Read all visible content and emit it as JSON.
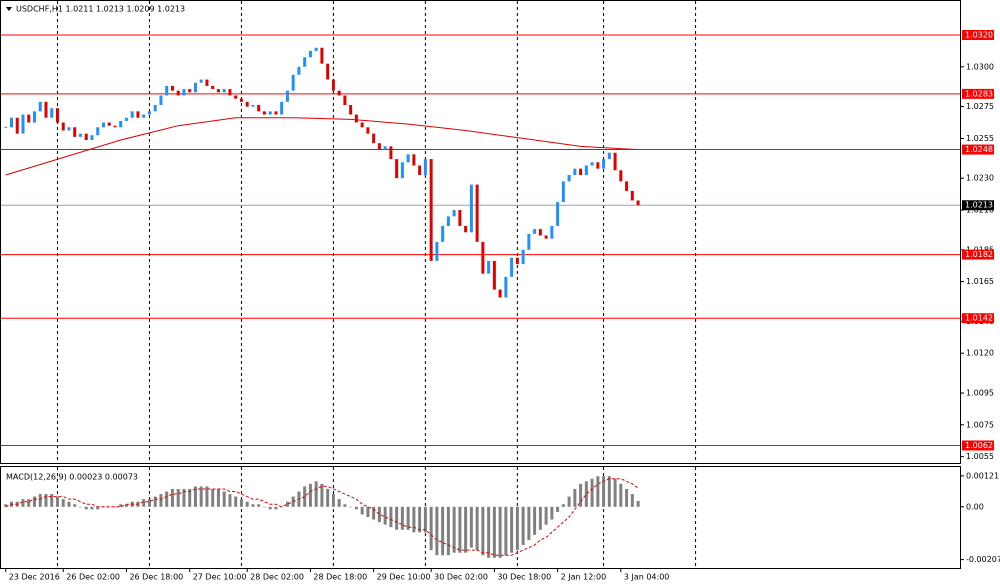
{
  "chart_data": {
    "type": "candlestick",
    "title": "USDCHF,H1  1.0211 1.0213 1.0209 1.0213",
    "up_color": "#1e90ff",
    "down_color": "#e00000",
    "close": [
      1.0262,
      1.0268,
      1.0258,
      1.027,
      1.0265,
      1.0272,
      1.0278,
      1.0268,
      1.0274,
      1.0265,
      1.026,
      1.0262,
      1.0256,
      1.0258,
      1.0254,
      1.0257,
      1.0262,
      1.0265,
      1.0263,
      1.0262,
      1.0266,
      1.0268,
      1.0272,
      1.0268,
      1.027,
      1.0272,
      1.0276,
      1.0282,
      1.0288,
      1.0285,
      1.0282,
      1.0286,
      1.0284,
      1.029,
      1.0292,
      1.0288,
      1.0286,
      1.0284,
      1.0286,
      1.0282,
      1.028,
      1.0278,
      1.0275,
      1.0276,
      1.0272,
      1.027,
      1.0272,
      1.027,
      1.0278,
      1.0285,
      1.0295,
      1.03,
      1.0306,
      1.031,
      1.0312,
      1.0302,
      1.0292,
      1.0285,
      1.0282,
      1.0276,
      1.027,
      1.0265,
      1.0262,
      1.0258,
      1.0252,
      1.0248,
      1.025,
      1.0242,
      1.023,
      1.024,
      1.0245,
      1.0238,
      1.0232,
      1.0242,
      1.0178,
      1.019,
      1.02,
      1.0206,
      1.021,
      1.02,
      1.0196,
      1.0226,
      1.019,
      1.017,
      1.0178,
      1.016,
      1.0155,
      1.0168,
      1.018,
      1.0176,
      1.0185,
      1.0195,
      1.0198,
      1.0194,
      1.0192,
      1.02,
      1.0215,
      1.0228,
      1.0232,
      1.0236,
      1.0232,
      1.0238,
      1.024,
      1.0236,
      1.0242,
      1.0246,
      1.0235,
      1.0228,
      1.0222,
      1.0216,
      1.0213
    ],
    "ma": {
      "color": "#e00000",
      "x": [
        0,
        10,
        20,
        30,
        40,
        50,
        60,
        70,
        80,
        90,
        100,
        110
      ],
      "values": [
        1.0232,
        1.0243,
        1.0254,
        1.0263,
        1.0268,
        1.0268,
        1.0267,
        1.0264,
        1.026,
        1.0255,
        1.025,
        1.0248
      ]
    },
    "xlim": [
      -1,
      166
    ],
    "ylim": [
      1.0051,
      1.0342
    ],
    "yticks": [
      {
        "value": 1.03,
        "label": "1.0300"
      },
      {
        "value": 1.0275,
        "label": "1.0275"
      },
      {
        "value": 1.0255,
        "label": "1.0255"
      },
      {
        "value": 1.023,
        "label": "1.0230"
      },
      {
        "value": 1.021,
        "label": "1.0210"
      },
      {
        "value": 1.0185,
        "label": "1.0185"
      },
      {
        "value": 1.0165,
        "label": "1.0165"
      },
      {
        "value": 1.014,
        "label": "1.0140"
      },
      {
        "value": 1.012,
        "label": "1.0120"
      },
      {
        "value": 1.0095,
        "label": "1.0095"
      },
      {
        "value": 1.0075,
        "label": "1.0075"
      },
      {
        "value": 1.0055,
        "label": "1.0055"
      }
    ],
    "levels": [
      {
        "value": 1.032,
        "label": "1.0320"
      },
      {
        "value": 1.0283,
        "label": "1.0283"
      },
      {
        "value": 1.0248,
        "label": "1.0248"
      },
      {
        "value": 1.0182,
        "label": "1.0182"
      },
      {
        "value": 1.0142,
        "label": "1.0142"
      },
      {
        "value": 1.0062,
        "label": "1.0062"
      }
    ],
    "level_color": "#ff0000",
    "current_price": {
      "value": 1.0213,
      "label": "1.0213"
    },
    "xticks": [
      {
        "value": 0,
        "label": "23 Dec 2016"
      },
      {
        "value": 10,
        "label": "26 Dec 02:00"
      },
      {
        "value": 21,
        "label": "26 Dec 18:00"
      },
      {
        "value": 32,
        "label": "27 Dec 10:00"
      },
      {
        "value": 42,
        "label": "28 Dec 02:00"
      },
      {
        "value": 53,
        "label": "28 Dec 18:00"
      },
      {
        "value": 64,
        "label": "29 Dec 10:00"
      },
      {
        "value": 74,
        "label": "30 Dec 02:00"
      },
      {
        "value": 85,
        "label": "30 Dec 18:00"
      },
      {
        "value": 96,
        "label": "2 Jan 12:00"
      },
      {
        "value": 107,
        "label": "3 Jan 04:00"
      }
    ],
    "xgrid": [
      9,
      25,
      41,
      57,
      73,
      89,
      104,
      120
    ],
    "macd": {
      "title": "MACD(12,26,9) 0.00023 0.00073",
      "histogram_color": "#808080",
      "signal_color": "#e00000",
      "ylim": [
        -0.0024,
        0.0016
      ],
      "yticks": [
        0.00121,
        {
          "value": 0,
          "label": "0.00"
        },
        -0.00207
      ],
      "histogram": [
        0.0001,
        0.0002,
        0.0002,
        0.0003,
        0.0003,
        0.0004,
        0.0005,
        0.0005,
        0.0005,
        0.0004,
        0.0003,
        0.0002,
        0.0001,
        0,
        -0.0001,
        -0.0001,
        -0.0001,
        0,
        0,
        0,
        0.0001,
        0.0001,
        0.0002,
        0.0002,
        0.0003,
        0.0003,
        0.0004,
        0.0005,
        0.0006,
        0.0007,
        0.0007,
        0.0007,
        0.0007,
        0.0008,
        0.0008,
        0.0008,
        0.0007,
        0.0007,
        0.0006,
        0.0005,
        0.0004,
        0.0003,
        0.0002,
        0.0001,
        0.0001,
        0,
        -0.0001,
        -0.0001,
        0,
        0.0002,
        0.0004,
        0.0006,
        0.0008,
        0.0009,
        0.001,
        0.0009,
        0.0007,
        0.0005,
        0.0003,
        0.0001,
        0,
        -0.0001,
        -0.0003,
        -0.0004,
        -0.0005,
        -0.0006,
        -0.0007,
        -0.0008,
        -0.0009,
        -0.0009,
        -0.0009,
        -0.001,
        -0.001,
        -0.001,
        -0.0017,
        -0.0019,
        -0.0019,
        -0.0019,
        -0.0018,
        -0.0018,
        -0.0018,
        -0.0016,
        -0.0017,
        -0.0019,
        -0.002,
        -0.002,
        -0.002,
        -0.0019,
        -0.0018,
        -0.0017,
        -0.0015,
        -0.0013,
        -0.0011,
        -0.0009,
        -0.0007,
        -0.0005,
        -0.0002,
        0.0001,
        0.0004,
        0.0007,
        0.0009,
        0.001,
        0.0011,
        0.0012,
        0.0012,
        0.0012,
        0.0011,
        0.0009,
        0.0007,
        0.0005,
        0.00023
      ],
      "signal": [
        0,
        0.0001,
        0.0001,
        0.0002,
        0.0002,
        0.0003,
        0.0003,
        0.0004,
        0.0004,
        0.0004,
        0.0004,
        0.0003,
        0.0003,
        0.0002,
        0.0001,
        0.0001,
        0,
        0,
        0,
        0,
        0,
        0.0001,
        0.0001,
        0.0001,
        0.0002,
        0.0002,
        0.0003,
        0.0003,
        0.0004,
        0.0005,
        0.0005,
        0.0006,
        0.0006,
        0.0007,
        0.0007,
        0.0007,
        0.0007,
        0.0007,
        0.0007,
        0.0006,
        0.0006,
        0.0005,
        0.0004,
        0.0003,
        0.0003,
        0.0002,
        0.0001,
        0.0001,
        0,
        0.0001,
        0.0002,
        0.0003,
        0.0004,
        0.0006,
        0.0007,
        0.0008,
        0.0008,
        0.0007,
        0.0006,
        0.0005,
        0.0004,
        0.0003,
        0.0001,
        0,
        -0.0001,
        -0.0003,
        -0.0004,
        -0.0005,
        -0.0006,
        -0.0007,
        -0.0008,
        -0.0008,
        -0.0009,
        -0.0009,
        -0.0011,
        -0.0013,
        -0.0014,
        -0.0015,
        -0.0016,
        -0.0017,
        -0.0017,
        -0.0017,
        -0.0017,
        -0.0018,
        -0.0018,
        -0.0019,
        -0.0019,
        -0.0019,
        -0.0019,
        -0.0018,
        -0.0017,
        -0.0016,
        -0.0015,
        -0.0013,
        -0.0012,
        -0.001,
        -0.0008,
        -0.0006,
        -0.0004,
        -0.0001,
        0.0002,
        0.0005,
        0.0007,
        0.0009,
        0.001,
        0.0011,
        0.0011,
        0.0011,
        0.001,
        0.0009,
        0.00073
      ]
    }
  }
}
